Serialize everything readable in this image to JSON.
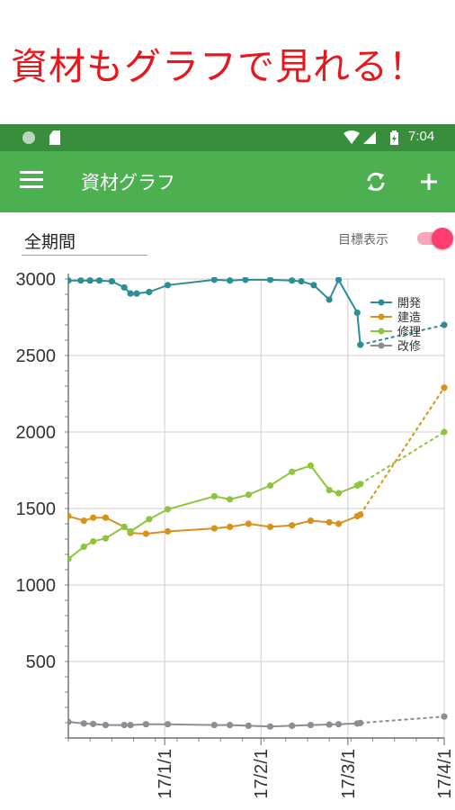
{
  "banner": {
    "text": "資材もグラフで見れる！"
  },
  "status_bar": {
    "time": "7:04"
  },
  "app_bar": {
    "title": "資材グラフ",
    "icons": [
      "menu-icon",
      "sync-icon",
      "add-icon"
    ]
  },
  "filter": {
    "period": "全期間",
    "target_label": "目標表示",
    "target_toggle_on": true
  },
  "colors": {
    "banner_text": "#e8171c",
    "status_bar": "#388e3c",
    "app_bar": "#4caf50",
    "toggle": "#ff3e70"
  },
  "chart_data": {
    "type": "line",
    "title": "",
    "xlabel": "",
    "ylabel": "",
    "ylim": [
      0,
      3000
    ],
    "xlim": [
      "2016-12-01",
      "2017-04-01"
    ],
    "y_ticks": [
      "3000",
      "2500",
      "2000",
      "1500",
      "1000",
      "500"
    ],
    "x_ticks": [
      {
        "label": "17/1/1",
        "date": "2017-01-01"
      },
      {
        "label": "17/2/1",
        "date": "2017-02-01"
      },
      {
        "label": "17/3/1",
        "date": "2017-03-01"
      },
      {
        "label": "17/4/1",
        "date": "2017-04-01"
      }
    ],
    "grid": true,
    "legend_position": "top-right",
    "series": [
      {
        "name": "開発",
        "color": "#2a8f94",
        "points": [
          [
            "2016-12-01",
            2990
          ],
          [
            "2016-12-05",
            2990
          ],
          [
            "2016-12-08",
            2990
          ],
          [
            "2016-12-11",
            2990
          ],
          [
            "2016-12-15",
            2985
          ],
          [
            "2016-12-19",
            2945
          ],
          [
            "2016-12-21",
            2905
          ],
          [
            "2016-12-23",
            2905
          ],
          [
            "2016-12-27",
            2915
          ],
          [
            "2017-01-02",
            2960
          ],
          [
            "2017-01-17",
            2995
          ],
          [
            "2017-01-22",
            2990
          ],
          [
            "2017-01-27",
            2995
          ],
          [
            "2017-02-04",
            2995
          ],
          [
            "2017-02-11",
            2990
          ],
          [
            "2017-02-14",
            2985
          ],
          [
            "2017-02-18",
            2960
          ],
          [
            "2017-02-23",
            2865
          ],
          [
            "2017-02-26",
            2995
          ],
          [
            "2017-03-04",
            2780
          ],
          [
            "2017-03-05",
            2570
          ]
        ],
        "forecast": [
          [
            "2017-03-05",
            2570
          ],
          [
            "2017-04-01",
            2700
          ]
        ]
      },
      {
        "name": "建造",
        "color": "#d9911a",
        "points": [
          [
            "2016-12-01",
            1450
          ],
          [
            "2016-12-06",
            1420
          ],
          [
            "2016-12-09",
            1440
          ],
          [
            "2016-12-13",
            1440
          ],
          [
            "2016-12-19",
            1380
          ],
          [
            "2016-12-21",
            1340
          ],
          [
            "2016-12-26",
            1335
          ],
          [
            "2017-01-02",
            1350
          ],
          [
            "2017-01-17",
            1370
          ],
          [
            "2017-01-22",
            1380
          ],
          [
            "2017-01-28",
            1400
          ],
          [
            "2017-02-04",
            1380
          ],
          [
            "2017-02-11",
            1390
          ],
          [
            "2017-02-17",
            1420
          ],
          [
            "2017-02-23",
            1410
          ],
          [
            "2017-02-26",
            1400
          ],
          [
            "2017-03-04",
            1450
          ],
          [
            "2017-03-05",
            1460
          ]
        ],
        "forecast": [
          [
            "2017-03-05",
            1460
          ],
          [
            "2017-04-01",
            2290
          ]
        ]
      },
      {
        "name": "修理",
        "color": "#8cc63f",
        "points": [
          [
            "2016-12-01",
            1170
          ],
          [
            "2016-12-06",
            1250
          ],
          [
            "2016-12-09",
            1285
          ],
          [
            "2016-12-13",
            1305
          ],
          [
            "2016-12-19",
            1380
          ],
          [
            "2016-12-21",
            1350
          ],
          [
            "2016-12-27",
            1430
          ],
          [
            "2017-01-02",
            1495
          ],
          [
            "2017-01-17",
            1580
          ],
          [
            "2017-01-22",
            1560
          ],
          [
            "2017-01-28",
            1590
          ],
          [
            "2017-02-04",
            1650
          ],
          [
            "2017-02-11",
            1740
          ],
          [
            "2017-02-17",
            1780
          ],
          [
            "2017-02-23",
            1620
          ],
          [
            "2017-02-26",
            1600
          ],
          [
            "2017-03-04",
            1650
          ],
          [
            "2017-03-05",
            1660
          ]
        ],
        "forecast": [
          [
            "2017-03-05",
            1660
          ],
          [
            "2017-04-01",
            2000
          ]
        ]
      },
      {
        "name": "改修",
        "color": "#8a8f96",
        "points": [
          [
            "2016-12-01",
            105
          ],
          [
            "2016-12-06",
            95
          ],
          [
            "2016-12-09",
            92
          ],
          [
            "2016-12-13",
            85
          ],
          [
            "2016-12-19",
            85
          ],
          [
            "2016-12-21",
            85
          ],
          [
            "2016-12-26",
            90
          ],
          [
            "2017-01-02",
            90
          ],
          [
            "2017-01-17",
            85
          ],
          [
            "2017-01-22",
            85
          ],
          [
            "2017-01-28",
            80
          ],
          [
            "2017-02-04",
            75
          ],
          [
            "2017-02-11",
            80
          ],
          [
            "2017-02-17",
            85
          ],
          [
            "2017-02-23",
            88
          ],
          [
            "2017-02-26",
            90
          ],
          [
            "2017-03-04",
            95
          ],
          [
            "2017-03-05",
            98
          ]
        ],
        "forecast": [
          [
            "2017-03-05",
            98
          ],
          [
            "2017-04-01",
            140
          ]
        ]
      }
    ]
  }
}
